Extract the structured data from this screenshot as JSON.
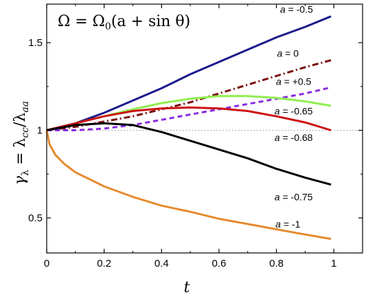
{
  "chart_data": {
    "type": "line",
    "title": "",
    "annotation": {
      "lhs": "Ω = Ω",
      "sub": "0",
      "rhs": "(a + sin θ)"
    },
    "xlabel": "t",
    "ylabel": {
      "gamma": "γ",
      "gamma_sub": "λ",
      "eq": " = λ",
      "num_sub": "cc",
      "slash": "/λ",
      "den_sub": "aa"
    },
    "xlim": [
      0,
      1.1
    ],
    "ylim": [
      0.3,
      1.72
    ],
    "xticks": [
      0,
      0.2,
      0.4,
      0.6,
      0.8,
      1
    ],
    "xtick_labels": [
      "0",
      "0.2",
      "0.4",
      "0.6",
      "0.8",
      "1"
    ],
    "yticks": [
      0.5,
      1,
      1.5
    ],
    "ytick_labels": [
      "0.5",
      "1",
      "1.5"
    ],
    "reference_line": {
      "y": 1,
      "style": "dotted",
      "color": "#999999"
    },
    "grid": false,
    "series": [
      {
        "name": "a = -0.5",
        "color": "#1a1a8c",
        "dash": "solid",
        "x": [
          0,
          0.1,
          0.2,
          0.3,
          0.4,
          0.5,
          0.6,
          0.7,
          0.8,
          0.9,
          0.99
        ],
        "y": [
          1.0,
          1.04,
          1.1,
          1.17,
          1.24,
          1.32,
          1.39,
          1.46,
          1.53,
          1.59,
          1.65
        ]
      },
      {
        "name": "a = 0",
        "color": "#7a0a0a",
        "dash": "dashdot",
        "x": [
          0,
          0.1,
          0.2,
          0.3,
          0.4,
          0.5,
          0.6,
          0.7,
          0.8,
          0.9,
          0.99
        ],
        "y": [
          1.0,
          1.02,
          1.05,
          1.08,
          1.12,
          1.16,
          1.21,
          1.26,
          1.31,
          1.36,
          1.4
        ]
      },
      {
        "name": "a = +0.5",
        "color": "#8a2be2",
        "dash": "dashed",
        "x": [
          0,
          0.1,
          0.2,
          0.3,
          0.4,
          0.5,
          0.6,
          0.7,
          0.8,
          0.9,
          0.99
        ],
        "y": [
          1.0,
          1.0,
          1.01,
          1.03,
          1.06,
          1.09,
          1.12,
          1.15,
          1.18,
          1.21,
          1.245
        ]
      },
      {
        "name": "a = -0.65",
        "color": "#90ee50",
        "dash": "solid",
        "x": [
          0,
          0.1,
          0.2,
          0.3,
          0.4,
          0.5,
          0.6,
          0.7,
          0.8,
          0.9,
          0.99
        ],
        "y": [
          1.0,
          1.04,
          1.08,
          1.12,
          1.155,
          1.18,
          1.195,
          1.195,
          1.185,
          1.165,
          1.14
        ]
      },
      {
        "name": "a = -0.68",
        "color": "#cc1111",
        "dash": "solid",
        "x": [
          0,
          0.1,
          0.2,
          0.3,
          0.4,
          0.5,
          0.6,
          0.7,
          0.8,
          0.9,
          0.99
        ],
        "y": [
          1.0,
          1.04,
          1.08,
          1.11,
          1.125,
          1.13,
          1.125,
          1.11,
          1.08,
          1.045,
          1.0
        ]
      },
      {
        "name": "a = -0.75",
        "color": "#000000",
        "dash": "solid",
        "x": [
          0,
          0.1,
          0.2,
          0.3,
          0.4,
          0.5,
          0.6,
          0.7,
          0.8,
          0.9,
          0.99
        ],
        "y": [
          1.0,
          1.03,
          1.04,
          1.03,
          0.99,
          0.94,
          0.89,
          0.84,
          0.78,
          0.73,
          0.69
        ]
      },
      {
        "name": "a = -1",
        "color": "#e68a2e",
        "dash": "solid",
        "x": [
          0,
          0.01,
          0.03,
          0.06,
          0.1,
          0.2,
          0.3,
          0.4,
          0.5,
          0.6,
          0.7,
          0.8,
          0.9,
          0.99
        ],
        "y": [
          1.0,
          0.92,
          0.86,
          0.81,
          0.76,
          0.68,
          0.62,
          0.57,
          0.535,
          0.495,
          0.465,
          0.435,
          0.405,
          0.38
        ]
      }
    ],
    "labels": [
      {
        "text": "a = -0.5",
        "x": 0.87,
        "y": 1.67
      },
      {
        "text": "a = 0",
        "x": 0.84,
        "y": 1.42
      },
      {
        "text": "a = +0.5",
        "x": 0.86,
        "y": 1.26
      },
      {
        "text": "a = -0.65",
        "x": 0.86,
        "y": 1.09
      },
      {
        "text": "a = -0.68",
        "x": 0.86,
        "y": 0.94
      },
      {
        "text": "a = -0.75",
        "x": 0.86,
        "y": 0.6
      },
      {
        "text": "a = -1",
        "x": 0.84,
        "y": 0.445
      }
    ]
  }
}
